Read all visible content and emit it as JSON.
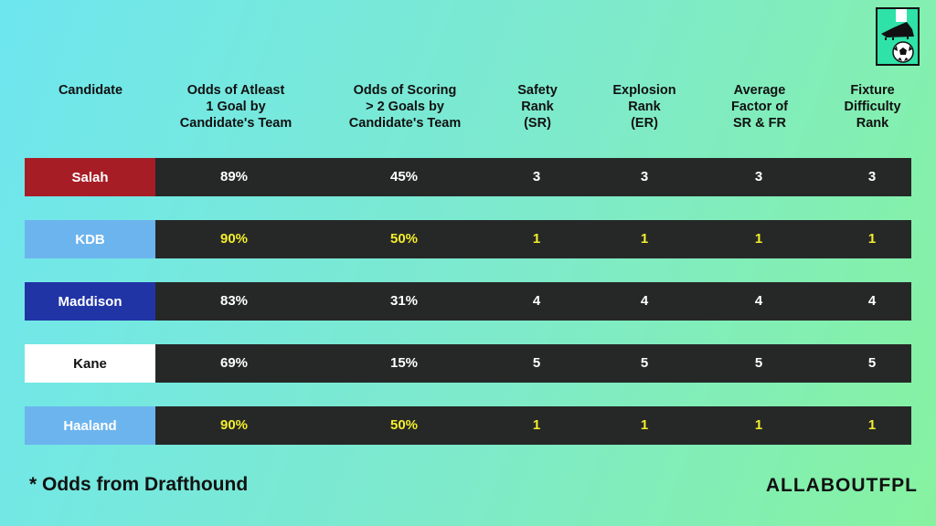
{
  "headers": {
    "candidate": "Candidate",
    "odds_one_goal": "Odds of Atleast\n1 Goal by\nCandidate's Team",
    "odds_two_goals": "Odds of Scoring\n> 2 Goals by\nCandidate's Team",
    "safety_rank": "Safety\nRank\n(SR)",
    "explosion_rank": "Explosion\nRank\n(ER)",
    "average_factor": "Average\nFactor of\nSR & FR",
    "fixture_difficulty": "Fixture\nDifficulty\nRank"
  },
  "rows": [
    {
      "name": "Salah",
      "odds_one_goal": "89%",
      "odds_two_goals": "45%",
      "safety_rank": "3",
      "explosion_rank": "3",
      "average_factor": "3",
      "fixture_difficulty": "3",
      "name_bg": "#a71d26",
      "name_color": "#ffffff",
      "value_color": "#ffffff"
    },
    {
      "name": "KDB",
      "odds_one_goal": "90%",
      "odds_two_goals": "50%",
      "safety_rank": "1",
      "explosion_rank": "1",
      "average_factor": "1",
      "fixture_difficulty": "1",
      "name_bg": "#6cb4ee",
      "name_color": "#ffffff",
      "value_color": "#f3ee2a"
    },
    {
      "name": "Maddison",
      "odds_one_goal": "83%",
      "odds_two_goals": "31%",
      "safety_rank": "4",
      "explosion_rank": "4",
      "average_factor": "4",
      "fixture_difficulty": "4",
      "name_bg": "#2034a6",
      "name_color": "#ffffff",
      "value_color": "#ffffff"
    },
    {
      "name": "Kane",
      "odds_one_goal": "69%",
      "odds_two_goals": "15%",
      "safety_rank": "5",
      "explosion_rank": "5",
      "average_factor": "5",
      "fixture_difficulty": "5",
      "name_bg": "#ffffff",
      "name_color": "#111111",
      "value_color": "#ffffff"
    },
    {
      "name": "Haaland",
      "odds_one_goal": "90%",
      "odds_two_goals": "50%",
      "safety_rank": "1",
      "explosion_rank": "1",
      "average_factor": "1",
      "fixture_difficulty": "1",
      "name_bg": "#6cb4ee",
      "name_color": "#ffffff",
      "value_color": "#f3ee2a"
    }
  ],
  "footnote": "*  Odds from Drafthound",
  "brand": "ALLABOUTFPL",
  "logo_icon": "football-boot-and-ball-icon"
}
